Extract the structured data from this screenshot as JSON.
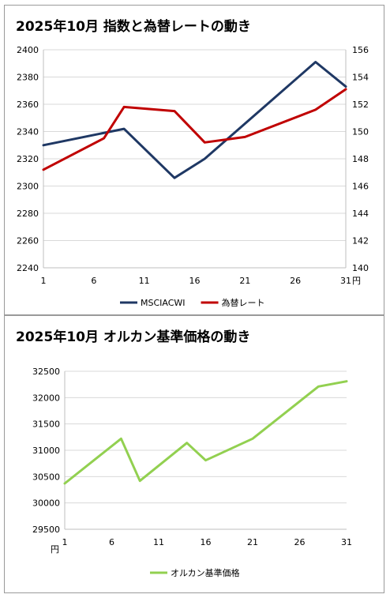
{
  "charts": [
    {
      "title": "2025年10月 指数と為替レートの動き",
      "type": "line",
      "x_ticks": [
        1,
        6,
        11,
        16,
        21,
        26,
        31
      ],
      "y_left": {
        "min": 2240,
        "max": 2400,
        "step": 20
      },
      "y_right": {
        "min": 140,
        "max": 156,
        "step": 2,
        "unit": "円"
      },
      "series": [
        {
          "name": "MSCIACWI",
          "color": "#1f3864",
          "axis": "left",
          "points": [
            [
              1,
              2330
            ],
            [
              9,
              2342
            ],
            [
              14,
              2306
            ],
            [
              17,
              2320
            ],
            [
              28,
              2391
            ],
            [
              31,
              2373
            ]
          ]
        },
        {
          "name": "為替レート",
          "color": "#c00000",
          "axis": "right",
          "points": [
            [
              1,
              147.2
            ],
            [
              7,
              149.5
            ],
            [
              9,
              151.8
            ],
            [
              14,
              151.5
            ],
            [
              17,
              149.2
            ],
            [
              21,
              149.6
            ],
            [
              28,
              151.6
            ],
            [
              31,
              153.1
            ]
          ]
        }
      ]
    },
    {
      "title": "2025年10月 オルカン基準価格の動き",
      "type": "line",
      "x_ticks": [
        1,
        6,
        11,
        16,
        21,
        26,
        31
      ],
      "y_left": {
        "min": 29500,
        "max": 32500,
        "step": 500,
        "unit": "円"
      },
      "series": [
        {
          "name": "オルカン基準価格",
          "color": "#92d050",
          "axis": "left",
          "points": [
            [
              1,
              30370
            ],
            [
              7,
              31220
            ],
            [
              9,
              30420
            ],
            [
              14,
              31140
            ],
            [
              16,
              30810
            ],
            [
              21,
              31220
            ],
            [
              28,
              32210
            ],
            [
              31,
              32310
            ]
          ]
        }
      ]
    }
  ]
}
